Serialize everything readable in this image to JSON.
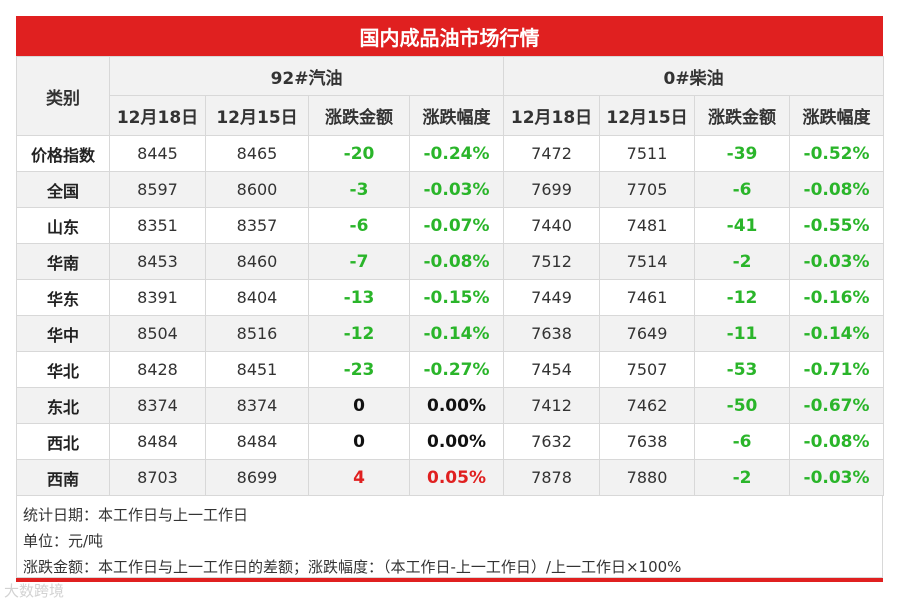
{
  "title": "国内成品油市场行情",
  "header": {
    "category": "类别",
    "gasoline": "92#汽油",
    "diesel": "0#柴油",
    "cols": [
      "12月18日",
      "12月15日",
      "涨跌金额",
      "涨跌幅度",
      "12月18日",
      "12月15日",
      "涨跌金额",
      "涨跌幅度"
    ]
  },
  "rows": [
    {
      "region": "价格指数",
      "g18": "8445",
      "g15": "8465",
      "gchg": "-20",
      "gpct": "-0.24%",
      "d18": "7472",
      "d15": "7511",
      "dchg": "-39",
      "dpct": "-0.52%"
    },
    {
      "region": "全国",
      "g18": "8597",
      "g15": "8600",
      "gchg": "-3",
      "gpct": "-0.03%",
      "d18": "7699",
      "d15": "7705",
      "dchg": "-6",
      "dpct": "-0.08%"
    },
    {
      "region": "山东",
      "g18": "8351",
      "g15": "8357",
      "gchg": "-6",
      "gpct": "-0.07%",
      "d18": "7440",
      "d15": "7481",
      "dchg": "-41",
      "dpct": "-0.55%"
    },
    {
      "region": "华南",
      "g18": "8453",
      "g15": "8460",
      "gchg": "-7",
      "gpct": "-0.08%",
      "d18": "7512",
      "d15": "7514",
      "dchg": "-2",
      "dpct": "-0.03%"
    },
    {
      "region": "华东",
      "g18": "8391",
      "g15": "8404",
      "gchg": "-13",
      "gpct": "-0.15%",
      "d18": "7449",
      "d15": "7461",
      "dchg": "-12",
      "dpct": "-0.16%"
    },
    {
      "region": "华中",
      "g18": "8504",
      "g15": "8516",
      "gchg": "-12",
      "gpct": "-0.14%",
      "d18": "7638",
      "d15": "7649",
      "dchg": "-11",
      "dpct": "-0.14%"
    },
    {
      "region": "华北",
      "g18": "8428",
      "g15": "8451",
      "gchg": "-23",
      "gpct": "-0.27%",
      "d18": "7454",
      "d15": "7507",
      "dchg": "-53",
      "dpct": "-0.71%"
    },
    {
      "region": "东北",
      "g18": "8374",
      "g15": "8374",
      "gchg": "0",
      "gpct": "0.00%",
      "d18": "7412",
      "d15": "7462",
      "dchg": "-50",
      "dpct": "-0.67%"
    },
    {
      "region": "西北",
      "g18": "8484",
      "g15": "8484",
      "gchg": "0",
      "gpct": "0.00%",
      "d18": "7632",
      "d15": "7638",
      "dchg": "-6",
      "dpct": "-0.08%"
    },
    {
      "region": "西南",
      "g18": "8703",
      "g15": "8699",
      "gchg": "4",
      "gpct": "0.05%",
      "d18": "7878",
      "d15": "7880",
      "dchg": "-2",
      "dpct": "-0.03%"
    }
  ],
  "notes": [
    "统计日期：本工作日与上一工作日",
    "单位：元/吨",
    "涨跌金额：本工作日与上一工作日的差额；涨跌幅度：（本工作日-上一工作日）/上一工作日×100%"
  ],
  "watermark": "大数跨境",
  "colors": {
    "accent": "#e02020",
    "up": "#e02020",
    "down": "#2ab52a",
    "flat": "#111111",
    "stripe": "#f2f2f2"
  }
}
